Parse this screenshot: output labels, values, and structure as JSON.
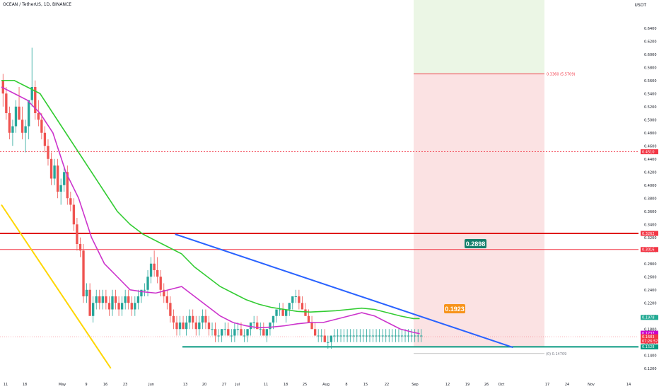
{
  "header": {
    "symbol_line": "OCEAN / TetherUS, 1D, BINANCE",
    "currency": "USDT"
  },
  "chart_data": {
    "type": "candlestick",
    "symbol": "OCEAN / TetherUS",
    "interval": "1D",
    "exchange": "BINANCE",
    "y_axis": {
      "ylim": [
        0.11,
        0.67
      ],
      "ticks": [
        "0.6400",
        "0.6200",
        "0.6000",
        "0.5800",
        "0.5600",
        "0.5400",
        "0.5200",
        "0.5000",
        "0.4800",
        "0.4600",
        "0.4400",
        "0.4200",
        "0.4000",
        "0.3800",
        "0.3600",
        "0.3400",
        "0.3200",
        "0.3000",
        "0.2800",
        "0.2600",
        "0.2400",
        "0.2200",
        "0.2000",
        "0.1800",
        "0.1600",
        "0.1400",
        "0.1200"
      ]
    },
    "x_axis": {
      "ticks": [
        "11",
        "18",
        "May",
        "9",
        "16",
        "23",
        "Jun",
        "13",
        "20",
        "27",
        "Jul",
        "11",
        "18",
        "25",
        "Aug",
        "8",
        "15",
        "22",
        "Sep",
        "12",
        "19",
        "26",
        "Oct",
        "17",
        "24",
        "Nov",
        "14"
      ]
    },
    "annotations": {
      "callout_high": "0.2898",
      "callout_low": "0.1923",
      "target_label": "0.3360 (5.5709)",
      "stop_label": "(0) 0.14709"
    },
    "price_labels": [
      {
        "text": "0.4510",
        "color": "#f23645"
      },
      {
        "text": "0.3262",
        "color": "#f23645"
      },
      {
        "text": "0.3016",
        "color": "#f23645"
      },
      {
        "text": "0.1978",
        "color": "#22ab94"
      },
      {
        "text": "0.1737",
        "color": "#cc00cc"
      },
      {
        "text": "0.1683",
        "color": "#f23645"
      },
      {
        "text": "07:26:57",
        "color": "#f23645"
      },
      {
        "text": "0.1528",
        "color": "#089981"
      }
    ],
    "levels": {
      "dotted_resistance": 0.451,
      "thick_resistance": 0.3262,
      "resistance_2": 0.3016,
      "support": 0.1528,
      "current_price": 0.1683,
      "target": 0.57,
      "stop": 0.147
    },
    "series": [
      {
        "name": "",
        "kind": "ema_fast",
        "color": "#cc33cc",
        "values": [
          [
            0,
            0.55
          ],
          [
            4,
            0.54
          ],
          [
            8,
            0.53
          ],
          [
            12,
            0.51
          ],
          [
            16,
            0.48
          ],
          [
            20,
            0.42
          ],
          [
            24,
            0.38
          ],
          [
            28,
            0.32
          ],
          [
            32,
            0.28
          ],
          [
            36,
            0.26
          ],
          [
            40,
            0.24
          ],
          [
            44,
            0.237
          ],
          [
            48,
            0.235
          ],
          [
            52,
            0.24
          ],
          [
            56,
            0.245
          ],
          [
            60,
            0.23
          ],
          [
            64,
            0.215
          ],
          [
            68,
            0.2
          ],
          [
            72,
            0.19
          ],
          [
            76,
            0.185
          ],
          [
            80,
            0.182
          ],
          [
            84,
            0.183
          ],
          [
            88,
            0.185
          ],
          [
            92,
            0.188
          ],
          [
            96,
            0.19
          ],
          [
            100,
            0.19
          ],
          [
            104,
            0.195
          ],
          [
            108,
            0.2
          ],
          [
            112,
            0.205
          ],
          [
            116,
            0.2
          ],
          [
            120,
            0.19
          ],
          [
            124,
            0.18
          ],
          [
            128,
            0.175
          ],
          [
            130,
            0.173
          ]
        ]
      },
      {
        "name": "",
        "kind": "ema_slow",
        "color": "#33cc33",
        "values": [
          [
            0,
            0.56
          ],
          [
            4,
            0.56
          ],
          [
            8,
            0.55
          ],
          [
            12,
            0.54
          ],
          [
            16,
            0.51
          ],
          [
            20,
            0.48
          ],
          [
            24,
            0.45
          ],
          [
            28,
            0.42
          ],
          [
            32,
            0.39
          ],
          [
            36,
            0.36
          ],
          [
            40,
            0.34
          ],
          [
            44,
            0.325
          ],
          [
            48,
            0.315
          ],
          [
            52,
            0.305
          ],
          [
            56,
            0.295
          ],
          [
            60,
            0.275
          ],
          [
            64,
            0.26
          ],
          [
            68,
            0.245
          ],
          [
            72,
            0.235
          ],
          [
            76,
            0.225
          ],
          [
            80,
            0.218
          ],
          [
            84,
            0.213
          ],
          [
            88,
            0.21
          ],
          [
            92,
            0.207
          ],
          [
            96,
            0.206
          ],
          [
            100,
            0.207
          ],
          [
            104,
            0.208
          ],
          [
            108,
            0.21
          ],
          [
            112,
            0.212
          ],
          [
            116,
            0.21
          ],
          [
            120,
            0.205
          ],
          [
            124,
            0.2
          ],
          [
            128,
            0.196
          ],
          [
            130,
            0.196
          ]
        ]
      },
      {
        "name": "",
        "kind": "trendline",
        "color": "#2962ff",
        "values": [
          [
            54,
            0.325
          ],
          [
            159,
            0.152
          ]
        ]
      },
      {
        "name": "",
        "kind": "trendline",
        "color": "#ffd600",
        "values": [
          [
            0,
            0.37
          ],
          [
            34,
            0.12
          ]
        ]
      }
    ],
    "candles": [
      [
        0,
        0.56,
        0.57,
        0.52,
        0.54
      ],
      [
        1,
        0.54,
        0.55,
        0.5,
        0.51
      ],
      [
        2,
        0.51,
        0.52,
        0.47,
        0.48
      ],
      [
        3,
        0.48,
        0.5,
        0.46,
        0.49
      ],
      [
        4,
        0.49,
        0.53,
        0.48,
        0.52
      ],
      [
        5,
        0.52,
        0.55,
        0.5,
        0.5
      ],
      [
        6,
        0.5,
        0.52,
        0.47,
        0.48
      ],
      [
        7,
        0.48,
        0.5,
        0.45,
        0.49
      ],
      [
        8,
        0.49,
        0.53,
        0.47,
        0.53
      ],
      [
        9,
        0.53,
        0.61,
        0.52,
        0.55
      ],
      [
        10,
        0.55,
        0.56,
        0.5,
        0.51
      ],
      [
        11,
        0.51,
        0.53,
        0.49,
        0.5
      ],
      [
        12,
        0.5,
        0.51,
        0.47,
        0.48
      ],
      [
        13,
        0.48,
        0.49,
        0.45,
        0.46
      ],
      [
        14,
        0.46,
        0.47,
        0.43,
        0.44
      ],
      [
        15,
        0.44,
        0.45,
        0.4,
        0.41
      ],
      [
        16,
        0.41,
        0.44,
        0.4,
        0.43
      ],
      [
        17,
        0.43,
        0.44,
        0.38,
        0.39
      ],
      [
        18,
        0.39,
        0.41,
        0.37,
        0.4
      ],
      [
        19,
        0.4,
        0.43,
        0.39,
        0.42
      ],
      [
        20,
        0.42,
        0.43,
        0.37,
        0.38
      ],
      [
        21,
        0.38,
        0.39,
        0.36,
        0.37
      ],
      [
        22,
        0.37,
        0.38,
        0.33,
        0.34
      ],
      [
        23,
        0.34,
        0.35,
        0.3,
        0.31
      ],
      [
        24,
        0.31,
        0.32,
        0.29,
        0.3
      ],
      [
        25,
        0.3,
        0.31,
        0.22,
        0.23
      ],
      [
        26,
        0.23,
        0.25,
        0.22,
        0.24
      ],
      [
        27,
        0.24,
        0.25,
        0.2,
        0.2
      ],
      [
        28,
        0.2,
        0.23,
        0.19,
        0.22
      ],
      [
        29,
        0.22,
        0.24,
        0.21,
        0.23
      ],
      [
        30,
        0.23,
        0.24,
        0.21,
        0.22
      ],
      [
        31,
        0.22,
        0.24,
        0.21,
        0.23
      ],
      [
        32,
        0.23,
        0.24,
        0.21,
        0.22
      ],
      [
        33,
        0.22,
        0.23,
        0.2,
        0.21
      ],
      [
        34,
        0.21,
        0.24,
        0.2,
        0.23
      ],
      [
        35,
        0.23,
        0.24,
        0.21,
        0.22
      ],
      [
        36,
        0.22,
        0.23,
        0.2,
        0.21
      ],
      [
        37,
        0.21,
        0.23,
        0.2,
        0.22
      ],
      [
        38,
        0.22,
        0.24,
        0.21,
        0.23
      ],
      [
        39,
        0.23,
        0.24,
        0.21,
        0.22
      ],
      [
        40,
        0.22,
        0.23,
        0.2,
        0.21
      ],
      [
        41,
        0.21,
        0.23,
        0.2,
        0.22
      ],
      [
        42,
        0.22,
        0.24,
        0.21,
        0.23
      ],
      [
        43,
        0.23,
        0.24,
        0.22,
        0.24
      ],
      [
        44,
        0.24,
        0.25,
        0.23,
        0.24
      ],
      [
        45,
        0.24,
        0.27,
        0.23,
        0.26
      ],
      [
        46,
        0.26,
        0.29,
        0.25,
        0.28
      ],
      [
        47,
        0.28,
        0.3,
        0.26,
        0.27
      ],
      [
        48,
        0.27,
        0.29,
        0.25,
        0.26
      ],
      [
        49,
        0.26,
        0.27,
        0.23,
        0.24
      ],
      [
        50,
        0.24,
        0.25,
        0.22,
        0.23
      ],
      [
        51,
        0.23,
        0.24,
        0.21,
        0.22
      ],
      [
        52,
        0.22,
        0.23,
        0.19,
        0.2
      ],
      [
        53,
        0.2,
        0.21,
        0.18,
        0.19
      ],
      [
        54,
        0.19,
        0.2,
        0.17,
        0.18
      ],
      [
        55,
        0.18,
        0.2,
        0.17,
        0.19
      ],
      [
        56,
        0.19,
        0.2,
        0.18,
        0.18
      ],
      [
        57,
        0.18,
        0.2,
        0.17,
        0.19
      ],
      [
        58,
        0.19,
        0.21,
        0.18,
        0.2
      ],
      [
        59,
        0.2,
        0.21,
        0.18,
        0.19
      ],
      [
        60,
        0.19,
        0.2,
        0.17,
        0.18
      ],
      [
        61,
        0.18,
        0.2,
        0.17,
        0.19
      ],
      [
        62,
        0.19,
        0.21,
        0.18,
        0.2
      ],
      [
        63,
        0.2,
        0.21,
        0.18,
        0.19
      ],
      [
        64,
        0.19,
        0.2,
        0.17,
        0.18
      ],
      [
        65,
        0.18,
        0.19,
        0.17,
        0.18
      ],
      [
        66,
        0.18,
        0.19,
        0.16,
        0.17
      ],
      [
        67,
        0.17,
        0.18,
        0.16,
        0.17
      ],
      [
        68,
        0.17,
        0.18,
        0.16,
        0.18
      ],
      [
        69,
        0.18,
        0.19,
        0.17,
        0.18
      ],
      [
        70,
        0.18,
        0.19,
        0.17,
        0.17
      ],
      [
        71,
        0.17,
        0.18,
        0.16,
        0.17
      ],
      [
        72,
        0.17,
        0.19,
        0.16,
        0.18
      ],
      [
        73,
        0.18,
        0.19,
        0.17,
        0.18
      ],
      [
        74,
        0.18,
        0.19,
        0.17,
        0.17
      ],
      [
        75,
        0.17,
        0.18,
        0.16,
        0.17
      ],
      [
        76,
        0.17,
        0.18,
        0.16,
        0.18
      ],
      [
        77,
        0.18,
        0.19,
        0.17,
        0.19
      ],
      [
        78,
        0.19,
        0.2,
        0.18,
        0.19
      ],
      [
        79,
        0.19,
        0.2,
        0.18,
        0.18
      ],
      [
        80,
        0.18,
        0.19,
        0.17,
        0.18
      ],
      [
        81,
        0.18,
        0.19,
        0.17,
        0.17
      ],
      [
        82,
        0.17,
        0.18,
        0.16,
        0.18
      ],
      [
        83,
        0.18,
        0.19,
        0.17,
        0.19
      ],
      [
        84,
        0.19,
        0.2,
        0.18,
        0.2
      ],
      [
        85,
        0.2,
        0.21,
        0.19,
        0.21
      ],
      [
        86,
        0.21,
        0.22,
        0.2,
        0.21
      ],
      [
        87,
        0.21,
        0.22,
        0.2,
        0.2
      ],
      [
        88,
        0.2,
        0.21,
        0.19,
        0.21
      ],
      [
        89,
        0.21,
        0.22,
        0.2,
        0.22
      ],
      [
        90,
        0.22,
        0.23,
        0.21,
        0.23
      ],
      [
        91,
        0.23,
        0.24,
        0.22,
        0.23
      ],
      [
        92,
        0.23,
        0.24,
        0.21,
        0.22
      ],
      [
        93,
        0.22,
        0.23,
        0.21,
        0.21
      ],
      [
        94,
        0.21,
        0.22,
        0.2,
        0.2
      ],
      [
        95,
        0.2,
        0.21,
        0.19,
        0.19
      ],
      [
        96,
        0.19,
        0.2,
        0.18,
        0.18
      ],
      [
        97,
        0.18,
        0.19,
        0.17,
        0.17
      ],
      [
        98,
        0.17,
        0.18,
        0.16,
        0.17
      ],
      [
        99,
        0.17,
        0.18,
        0.16,
        0.17
      ],
      [
        100,
        0.17,
        0.18,
        0.16,
        0.16
      ],
      [
        101,
        0.16,
        0.17,
        0.15,
        0.16
      ],
      [
        102,
        0.16,
        0.17,
        0.15,
        0.17
      ],
      [
        103,
        0.17,
        0.18,
        0.16,
        0.17
      ],
      [
        104,
        0.17,
        0.18,
        0.16,
        0.17
      ],
      [
        105,
        0.17,
        0.18,
        0.16,
        0.17
      ],
      [
        106,
        0.17,
        0.18,
        0.16,
        0.17
      ],
      [
        107,
        0.17,
        0.18,
        0.16,
        0.17
      ],
      [
        108,
        0.17,
        0.18,
        0.16,
        0.17
      ],
      [
        109,
        0.17,
        0.18,
        0.16,
        0.17
      ],
      [
        110,
        0.17,
        0.18,
        0.16,
        0.17
      ],
      [
        111,
        0.17,
        0.18,
        0.16,
        0.17
      ],
      [
        112,
        0.17,
        0.18,
        0.16,
        0.17
      ],
      [
        113,
        0.17,
        0.18,
        0.16,
        0.17
      ],
      [
        114,
        0.17,
        0.18,
        0.16,
        0.17
      ],
      [
        115,
        0.17,
        0.18,
        0.16,
        0.17
      ],
      [
        116,
        0.17,
        0.18,
        0.16,
        0.17
      ],
      [
        117,
        0.17,
        0.18,
        0.16,
        0.17
      ],
      [
        118,
        0.17,
        0.18,
        0.16,
        0.17
      ],
      [
        119,
        0.17,
        0.18,
        0.16,
        0.17
      ],
      [
        120,
        0.17,
        0.18,
        0.16,
        0.17
      ],
      [
        121,
        0.17,
        0.18,
        0.16,
        0.17
      ],
      [
        122,
        0.17,
        0.18,
        0.16,
        0.17
      ],
      [
        123,
        0.17,
        0.18,
        0.16,
        0.17
      ],
      [
        124,
        0.17,
        0.18,
        0.16,
        0.17
      ],
      [
        125,
        0.17,
        0.18,
        0.16,
        0.17
      ],
      [
        126,
        0.17,
        0.18,
        0.16,
        0.17
      ],
      [
        127,
        0.17,
        0.18,
        0.16,
        0.17
      ],
      [
        128,
        0.17,
        0.18,
        0.16,
        0.17
      ],
      [
        129,
        0.17,
        0.18,
        0.16,
        0.17
      ],
      [
        130,
        0.17,
        0.18,
        0.16,
        0.17
      ]
    ]
  }
}
